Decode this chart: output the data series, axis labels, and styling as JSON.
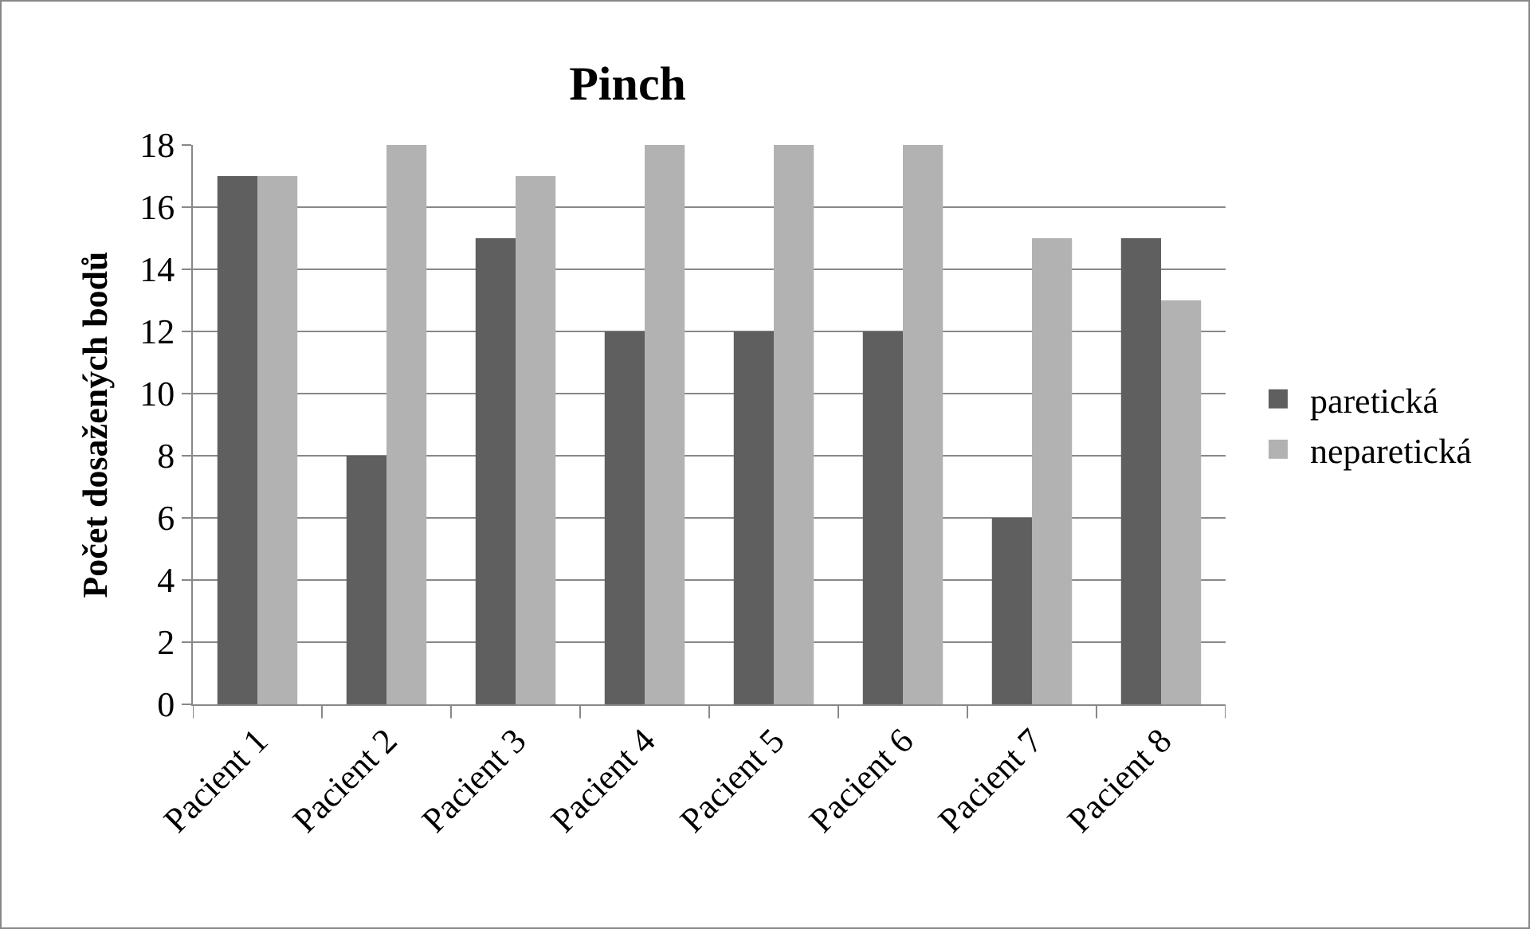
{
  "chart_data": {
    "type": "bar",
    "title": "Pinch",
    "ylabel": "Počet dosažených bodů",
    "categories": [
      "Pacient 1",
      "Pacient 2",
      "Pacient 3",
      "Pacient 4",
      "Pacient 5",
      "Pacient 6",
      "Pacient 7",
      "Pacient 8"
    ],
    "series": [
      {
        "name": "paretická",
        "color": "#5f5f5f",
        "values": [
          17,
          8,
          15,
          12,
          12,
          12,
          6,
          15
        ]
      },
      {
        "name": "neparetická",
        "color": "#b2b2b2",
        "values": [
          17,
          18,
          17,
          18,
          18,
          18,
          15,
          13
        ]
      }
    ],
    "ylim": [
      0,
      18
    ],
    "yticks": [
      0,
      2,
      4,
      6,
      8,
      10,
      12,
      14,
      16,
      18
    ],
    "grid": "y",
    "legend": "right"
  }
}
